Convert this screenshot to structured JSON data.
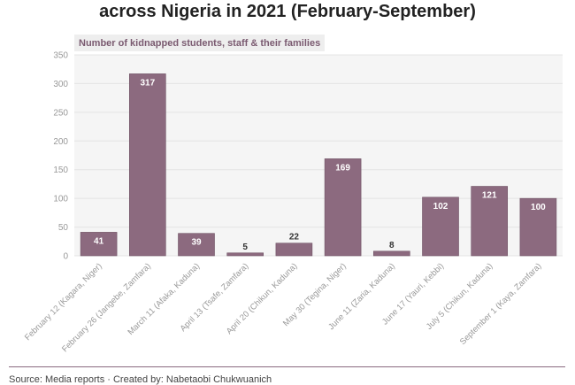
{
  "header": {
    "title": "across Nigeria in 2021 (February-September)",
    "subtitle": "Number of kidnapped students, staff & their families"
  },
  "footer": {
    "source": "Source: Media reports · Created by: Nabetaobi Chukwuanich"
  },
  "colors": {
    "bar": "#8c6a7f",
    "bar_stroke": "#6f5264",
    "plot_bg": "#f5f5f5",
    "grid": "#e4e4e4"
  },
  "chart_data": {
    "type": "bar",
    "title": "across Nigeria in 2021 (February-September)",
    "subtitle": "Number of kidnapped students, staff & their families",
    "xlabel": "",
    "ylabel": "",
    "ylim": [
      0,
      350
    ],
    "yticks": [
      0,
      50,
      100,
      150,
      200,
      250,
      300,
      350
    ],
    "grid": true,
    "categories": [
      "February 12 (Kagara, Niger)",
      "February 26 (Jangebe, Zamfara)",
      "March 11 (Afaka, Kaduna)",
      "April 13 (Tsafe, Zamfara)",
      "April 20 (Chikun, Kaduna)",
      "May 30 (Tegina, Niger)",
      "June 11 (Zaria, Kaduna)",
      "June 17 (Yauri, Kebbi)",
      "July 5 (Chikun, Kaduna)",
      "September 1 (Kaya, Zamfara)"
    ],
    "values": [
      41,
      317,
      39,
      5,
      22,
      169,
      8,
      102,
      121,
      100
    ]
  }
}
